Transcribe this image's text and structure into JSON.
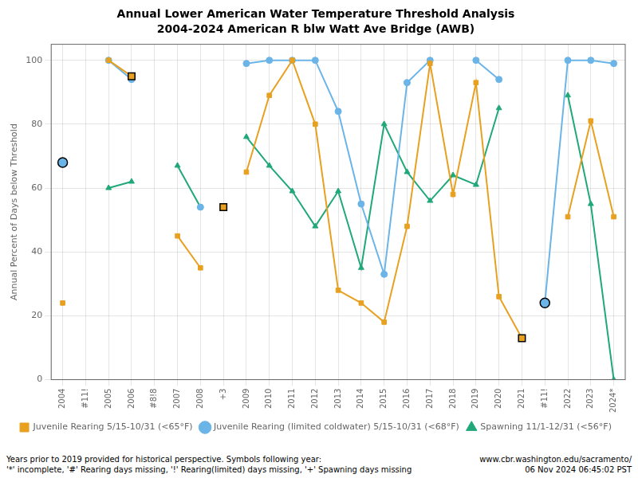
{
  "chart_data": {
    "type": "line",
    "title": "Annual Lower American Water Temperature Threshold Analysis",
    "subtitle": "2004-2024 American R blw Watt Ave Bridge (AWB)",
    "y_label": "Annual Percent of Days below Threshold",
    "categories": [
      "2004",
      "#11!",
      "2005",
      "2006",
      "#8!8",
      "2007",
      "2008",
      "+3",
      "2009",
      "2010",
      "2011",
      "2012",
      "2013",
      "2014",
      "2015",
      "2016",
      "2017",
      "2018",
      "2019",
      "2020",
      "2021",
      "#11!",
      "2022",
      "2023",
      "2024*"
    ],
    "series": [
      {
        "name": "Juvenile Rearing 5/15-10/31 (<65°F)",
        "color": "#E8A020",
        "marker": "square",
        "line_style": "solid",
        "values": [
          24,
          null,
          100,
          95,
          null,
          45,
          35,
          null,
          65,
          89,
          100,
          80,
          28,
          24,
          18,
          48,
          99,
          58,
          93,
          26,
          13,
          null,
          51,
          81,
          51
        ]
      },
      {
        "name": "Juvenile Rearing (limited coldwater) 5/15-10/31 (<68°F)",
        "color": "#6AB4E8",
        "marker": "circle",
        "line_style": "solid",
        "values": [
          68,
          null,
          100,
          94,
          null,
          null,
          54,
          null,
          99,
          100,
          100,
          100,
          84,
          55,
          33,
          93,
          100,
          null,
          100,
          94,
          null,
          24,
          100,
          100,
          99
        ]
      },
      {
        "name": "Spawning 11/1-12/31 (<56°F)",
        "color": "#20A878",
        "marker": "triangle",
        "line_style": "solid",
        "values": [
          68,
          null,
          60,
          62,
          null,
          67,
          54,
          null,
          76,
          67,
          59,
          48,
          59,
          35,
          80,
          65,
          56,
          64,
          61,
          85,
          null,
          null,
          89,
          55,
          0
        ]
      },
      {
        "color": "#6AB4E8",
        "marker": "circle",
        "line_style": "none",
        "values": [
          68,
          null,
          null,
          null,
          null,
          null,
          null,
          null,
          null,
          null,
          null,
          null,
          null,
          null,
          null,
          null,
          null,
          null,
          null,
          null,
          null,
          24,
          null,
          null,
          null
        ]
      },
      {
        "color": "#E8A020",
        "marker": "square",
        "line_style": "none",
        "values": [
          null,
          null,
          null,
          95,
          null,
          null,
          null,
          54,
          null,
          null,
          null,
          null,
          null,
          null,
          null,
          null,
          null,
          null,
          null,
          null,
          13,
          null,
          null,
          null,
          null
        ]
      }
    ],
    "ylim": [
      0,
      105
    ],
    "yticks": [
      0,
      20,
      40,
      60,
      80,
      100
    ],
    "grid": true,
    "legend": "bottom",
    "annotations": [
      "Years prior to 2019 provided for historical perspective. Symbols following year:\n'*' incomplete, '#' Rearing days missing, '!' Rearing(limited) days missing, '+' Spawning days missing",
      "www.cbr.washington.edu/sacramento/\n06 Nov 2024 06:45:02 PST"
    ]
  }
}
